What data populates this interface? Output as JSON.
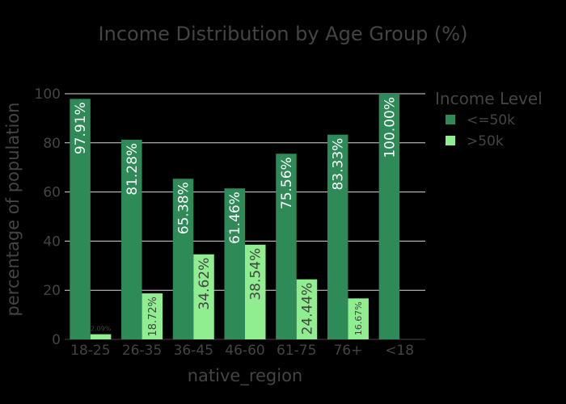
{
  "chart_data": {
    "type": "bar",
    "title": "Income Distribution by Age Group (%)",
    "xlabel": "native_region",
    "ylabel": "percentage of population",
    "categories": [
      "18-25",
      "26-35",
      "36-45",
      "46-60",
      "61-75",
      "76+",
      "<18"
    ],
    "series": [
      {
        "name": "<=50k",
        "color": "#2e8b57",
        "values": [
          97.91,
          81.28,
          65.38,
          61.46,
          75.56,
          83.33,
          100.0
        ],
        "labels": [
          "97.91%",
          "81.28%",
          "65.38%",
          "61.46%",
          "75.56%",
          "83.33%",
          "100.00%"
        ]
      },
      {
        "name": ">50k",
        "color": "#90ee90",
        "values": [
          2.09,
          18.72,
          34.62,
          38.54,
          24.44,
          16.67,
          null
        ],
        "labels": [
          "2.09%",
          "18.72%",
          "34.62%",
          "38.54%",
          "24.44%",
          "16.67%",
          null
        ]
      }
    ],
    "ylim": [
      0,
      100
    ],
    "yticks": [
      0,
      20,
      40,
      60,
      80,
      100
    ],
    "grid": true,
    "legend": {
      "title": "Income Level",
      "position": "top-right"
    }
  }
}
